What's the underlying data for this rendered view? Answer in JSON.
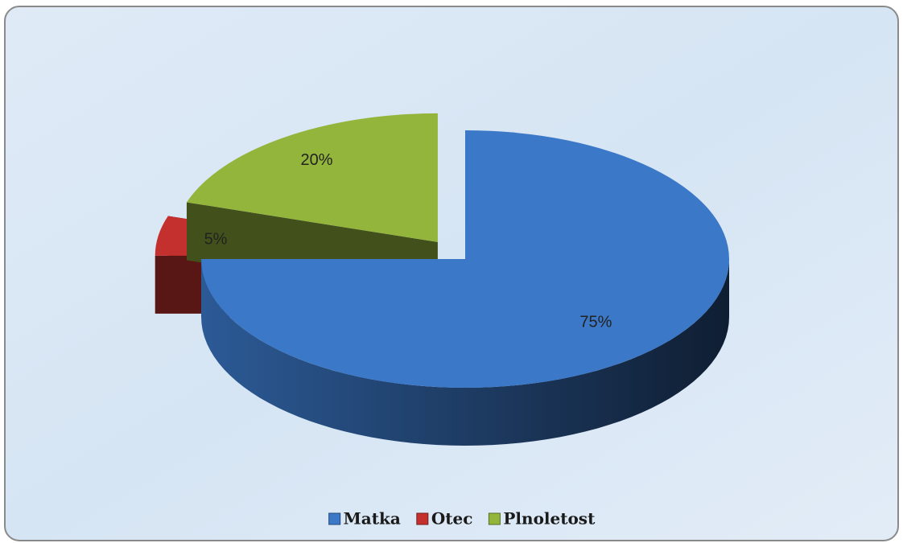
{
  "chart_data": {
    "type": "pie",
    "categories": [
      "Matka",
      "Otec",
      "Plnoletost"
    ],
    "values": [
      75,
      5,
      20
    ],
    "value_labels": [
      "75%",
      "5%",
      "20%"
    ],
    "colors": [
      "#3b78c8",
      "#c3302d",
      "#93b53c"
    ],
    "legend": "bottom"
  }
}
